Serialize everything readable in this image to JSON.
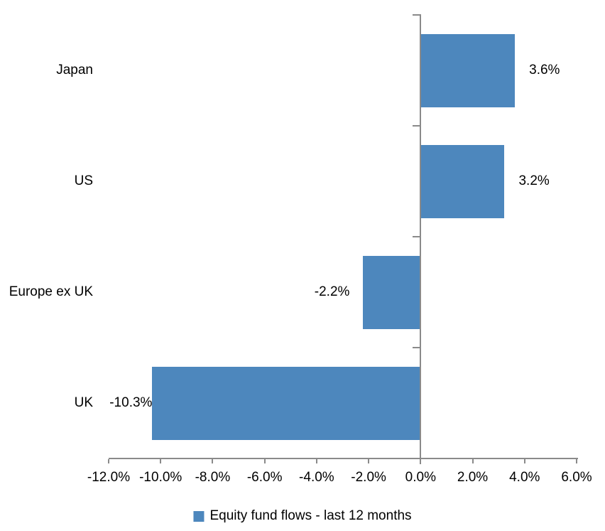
{
  "chart_data": {
    "type": "bar",
    "orientation": "horizontal",
    "title": "",
    "categories": [
      "Japan",
      "US",
      "Europe ex UK",
      "UK"
    ],
    "values": [
      3.6,
      3.2,
      -2.2,
      -10.3
    ],
    "value_labels": [
      "3.6%",
      "3.2%",
      "-2.2%",
      "-10.3%"
    ],
    "legend_label": "Equity fund flows - last 12 months",
    "legend_position": "bottom",
    "xlim": [
      -12,
      6
    ],
    "x_tick_values": [
      -12,
      -10,
      -8,
      -6,
      -4,
      -2,
      0,
      2,
      4,
      6
    ],
    "x_ticks": [
      "-12.0%",
      "-10.0%",
      "-8.0%",
      "-6.0%",
      "-4.0%",
      "-2.0%",
      "0.0%",
      "2.0%",
      "4.0%",
      "6.0%"
    ],
    "grid": false,
    "bar_color": "#4d87bd",
    "axis_color": "#8a8a8a",
    "text_color": "#000000"
  }
}
